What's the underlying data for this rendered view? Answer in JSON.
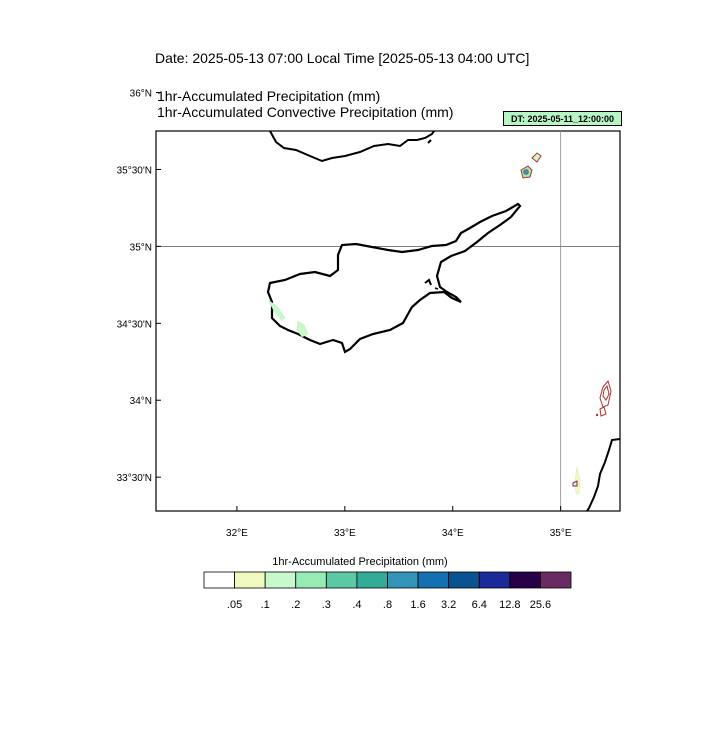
{
  "header": {
    "date_line": "Date: 2025-05-13  07:00 Local Time [2025-05-13  04:00 UTC]",
    "variable_1": "1hr-Accumulated Precipitation   (mm)",
    "variable_2": "1hr-Accumulated Convective Precipitation   (mm)",
    "init_badge": "DT: 2025-05-11_12:00:00"
  },
  "map": {
    "lon_range": [
      31.25,
      35.55
    ],
    "lat_range": [
      33.28,
      35.75
    ],
    "lat_ticks": [
      {
        "value": 36.0,
        "label": "36°N"
      },
      {
        "value": 35.5,
        "label": "35°30'N"
      },
      {
        "value": 35.0,
        "label": "35°N"
      },
      {
        "value": 34.5,
        "label": "34°30'N"
      },
      {
        "value": 34.0,
        "label": "34°N"
      },
      {
        "value": 33.5,
        "label": "33°30'N"
      }
    ],
    "lon_ticks": [
      {
        "value": 32,
        "label": "32°E"
      },
      {
        "value": 33,
        "label": "33°E"
      },
      {
        "value": 34,
        "label": "34°E"
      },
      {
        "value": 35,
        "label": "35°E"
      }
    ],
    "reference_lines": {
      "latitude": 35.0,
      "longitude": 35.0
    }
  },
  "colorbar": {
    "title": "1hr-Accumulated Precipitation  (mm)",
    "colors": [
      "#ffffff",
      "#f0fac0",
      "#c8f8cc",
      "#96ecb4",
      "#5cc8a4",
      "#34aa98",
      "#3494b8",
      "#1470b0",
      "#0a5290",
      "#1a2a98",
      "#260048",
      "#6a2a64"
    ],
    "labels": [
      ".05",
      ".1",
      ".2",
      ".3",
      ".4",
      ".8",
      "1.6",
      "3.2",
      "6.4",
      "12.8",
      "25.6"
    ]
  }
}
